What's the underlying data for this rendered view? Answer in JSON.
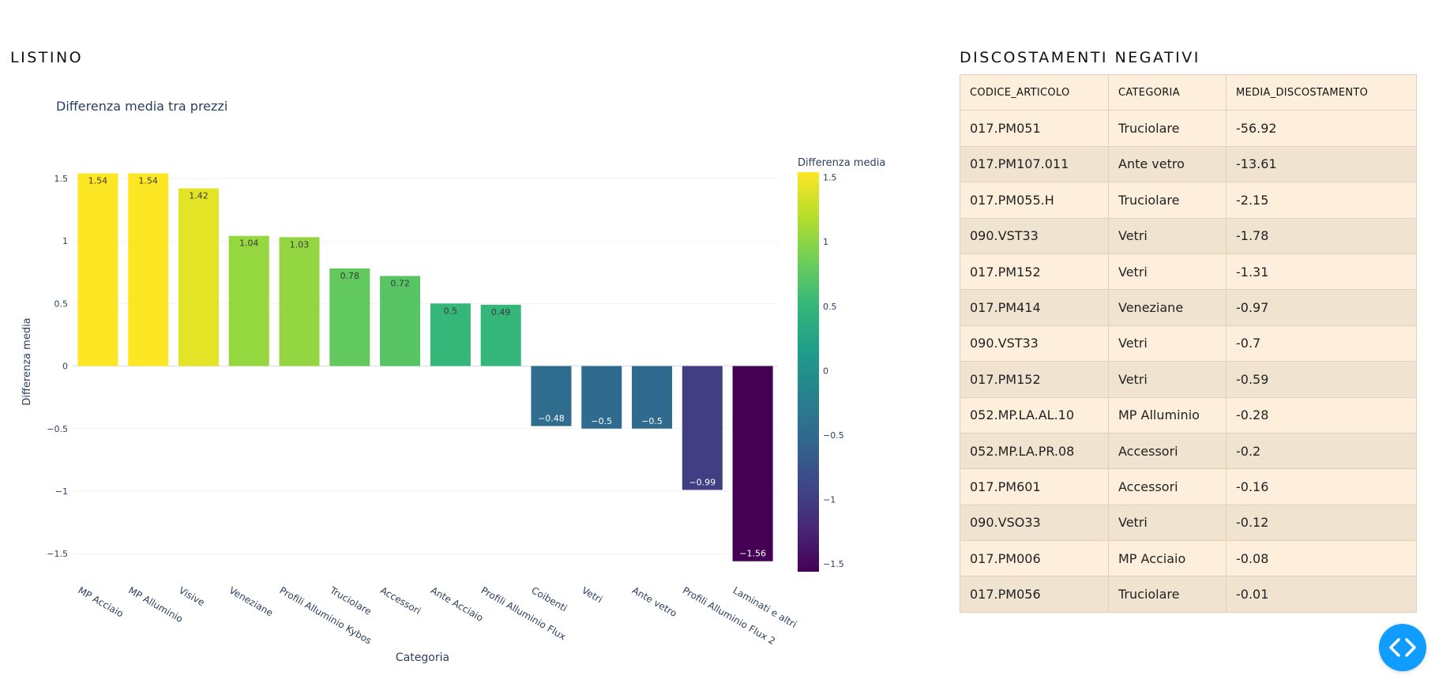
{
  "sections": {
    "left_title": "LISTINO",
    "right_title": "DISCOSTAMENTI NEGATIVI"
  },
  "colors": {
    "fab": "#119dff",
    "table_border": "#e2cfb4",
    "table_row_light": "#fdefdc",
    "table_row_dark": "#f0e3d0"
  },
  "chart_data": {
    "type": "bar",
    "title": "Differenza media tra prezzi",
    "xlabel": "Categoria",
    "ylabel": "Differenza media",
    "colorbar_title": "Differenza media",
    "colorscale": "viridis",
    "categories": [
      "MP Acciaio",
      "MP Alluminio",
      "Visive",
      "Veneziane",
      "Profili Alluminio Kybos",
      "Truciolare",
      "Accessori",
      "Ante Acciaio",
      "Profili Alluminio Flux",
      "Coibenti",
      "Vetri",
      "Ante vetro",
      "Profili Alluminio Flux 2",
      "Laminati e altri"
    ],
    "values": [
      1.54,
      1.54,
      1.42,
      1.04,
      1.03,
      0.78,
      0.72,
      0.5,
      0.49,
      -0.48,
      -0.5,
      -0.5,
      -0.99,
      -1.56
    ],
    "data_labels": [
      "1.54",
      "1.54",
      "1.42",
      "1.04",
      "1.03",
      "0.78",
      "0.72",
      "0.5",
      "0.49",
      "−0.48",
      "−0.5",
      "−0.5",
      "−0.99",
      "−1.56"
    ],
    "ylim": [
      -1.65,
      1.6
    ],
    "yticks": [
      1.5,
      1,
      0.5,
      0,
      -0.5,
      -1,
      -1.5
    ],
    "ytick_labels": [
      "1.5",
      "1",
      "0.5",
      "0",
      "−0.5",
      "−1",
      "−1.5"
    ],
    "colorbar_range": [
      -1.56,
      1.54
    ],
    "colorbar_ticks": [
      1.5,
      1,
      0.5,
      0,
      -0.5,
      -1,
      -1.5
    ],
    "colorbar_tick_labels": [
      "1.5",
      "1",
      "0.5",
      "0",
      "−0.5",
      "−1",
      "−1.5"
    ],
    "grid": true,
    "legend": "colorbar-right"
  },
  "table": {
    "columns": [
      "CODICE_ARTICOLO",
      "CATEGORIA",
      "MEDIA_DISCOSTAMENTO"
    ],
    "rows": [
      [
        "017.PM051",
        "Truciolare",
        "-56.92"
      ],
      [
        "017.PM107.011",
        "Ante vetro",
        "-13.61"
      ],
      [
        "017.PM055.H",
        "Truciolare",
        "-2.15"
      ],
      [
        "090.VST33",
        "Vetri",
        "-1.78"
      ],
      [
        "017.PM152",
        "Vetri",
        "-1.31"
      ],
      [
        "017.PM414",
        "Veneziane",
        "-0.97"
      ],
      [
        "090.VST33",
        "Vetri",
        "-0.7"
      ],
      [
        "017.PM152",
        "Vetri",
        "-0.59"
      ],
      [
        "052.MP.LA.AL.10",
        "MP Alluminio",
        "-0.28"
      ],
      [
        "052.MP.LA.PR.08",
        "Accessori",
        "-0.2"
      ],
      [
        "017.PM601",
        "Accessori",
        "-0.16"
      ],
      [
        "090.VSO33",
        "Vetri",
        "-0.12"
      ],
      [
        "017.PM006",
        "MP Acciaio",
        "-0.08"
      ],
      [
        "017.PM056",
        "Truciolare",
        "-0.01"
      ]
    ]
  },
  "fab": {
    "icon": "code-icon"
  }
}
